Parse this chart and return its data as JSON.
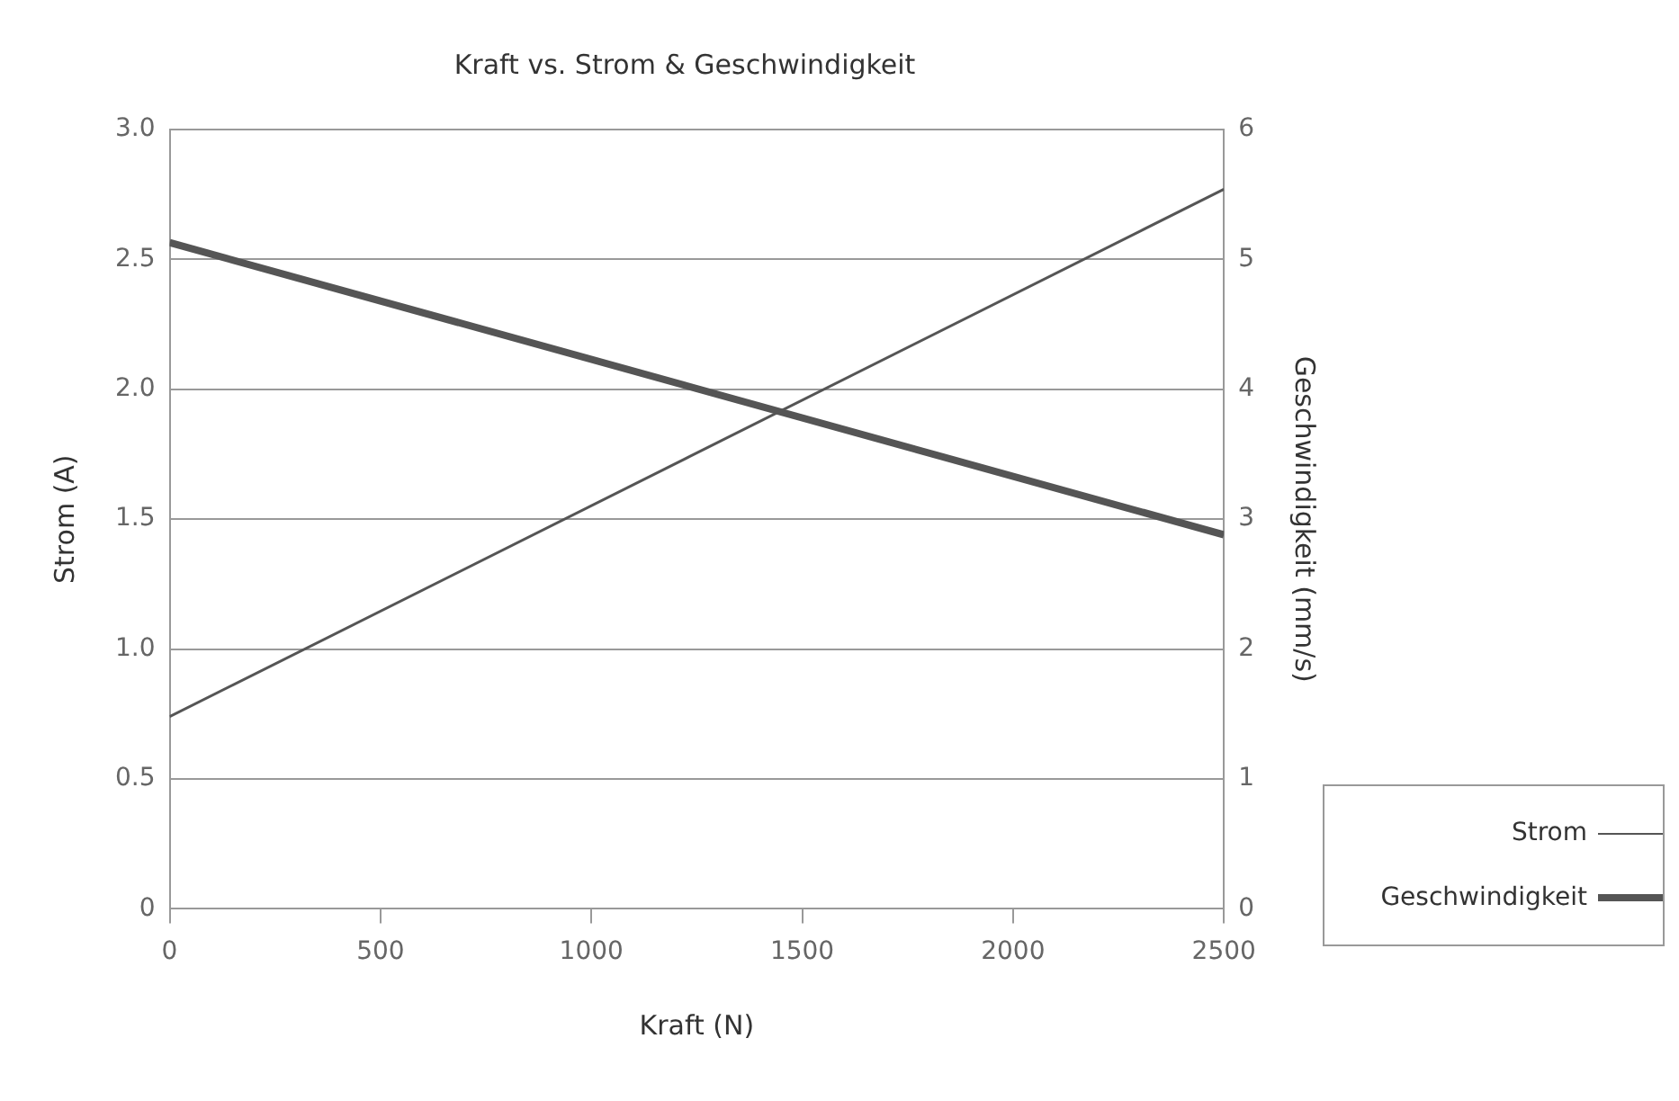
{
  "chart_data": {
    "type": "line",
    "title": "Kraft vs. Strom & Geschwindigkeit",
    "xlabel": "Kraft (N)",
    "ylabel": "Strom (A)",
    "y2label": "Geschwindigkeit (mm/s)",
    "x": [
      0,
      2500
    ],
    "series": [
      {
        "name": "Strom",
        "color": "#555555",
        "values": [
          0.74,
          2.77
        ]
      },
      {
        "name": "Geschwindigkeit",
        "color": "#555555",
        "values": [
          5.13,
          2.88
        ],
        "axis": "y2"
      }
    ],
    "xlim": [
      0,
      2500
    ],
    "xticks": [
      0,
      500,
      1000,
      1500,
      2000,
      2500
    ],
    "ylim": [
      0,
      3
    ],
    "yticks": [
      0,
      {
        "value": 0.5,
        "label": "0.5"
      },
      {
        "value": 1,
        "label": "1.0"
      },
      {
        "value": 1.5,
        "label": "1.5"
      },
      {
        "value": 2,
        "label": "2.0"
      },
      {
        "value": 2.5,
        "label": "2.5"
      },
      {
        "value": 3,
        "label": "3.0"
      }
    ],
    "y2lim": [
      0,
      6
    ],
    "y2ticks": [
      0,
      1,
      2,
      3,
      4,
      5,
      6
    ],
    "grid": "y",
    "legend": "bottom right",
    "marker": "none",
    "line_style": "solid"
  }
}
